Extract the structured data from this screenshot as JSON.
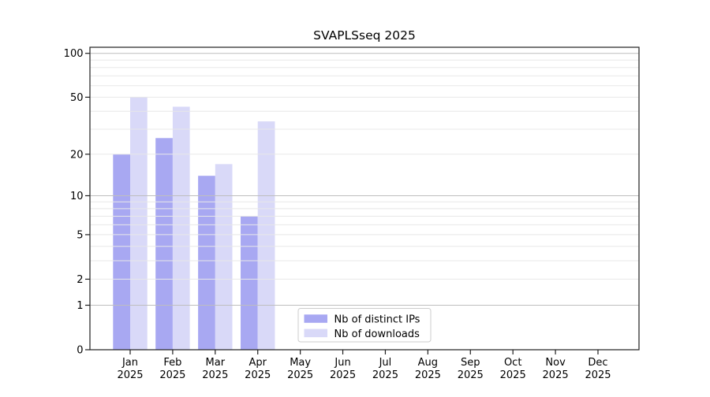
{
  "chart_data": {
    "type": "bar",
    "title": "SVAPLSseq 2025",
    "categories": [
      "Jan",
      "Feb",
      "Mar",
      "Apr",
      "May",
      "Jun",
      "Jul",
      "Aug",
      "Sep",
      "Oct",
      "Nov",
      "Dec"
    ],
    "x_tick_second_line": "2025",
    "series": [
      {
        "name": "Nb of distinct IPs",
        "color": "#a8a8f2",
        "values": [
          20,
          26,
          14,
          7,
          0,
          0,
          0,
          0,
          0,
          0,
          0,
          0
        ]
      },
      {
        "name": "Nb of downloads",
        "color": "#d9d9f8",
        "values": [
          50,
          43,
          17,
          34,
          0,
          0,
          0,
          0,
          0,
          0,
          0,
          0
        ]
      }
    ],
    "y_ticks": [
      0,
      1,
      2,
      5,
      10,
      20,
      50,
      100
    ],
    "y_scale": "log1p",
    "ylim": [
      0,
      110
    ],
    "grid": true,
    "legend_position": "bottom-center-inside"
  },
  "colors": {
    "background": "#ffffff",
    "major_grid": "#bebebe",
    "minor_grid": "#e8e8e8",
    "axis": "#1f1f1f",
    "text": "#000000",
    "legend_border": "#cccccc",
    "legend_fill": "#ffffff"
  }
}
